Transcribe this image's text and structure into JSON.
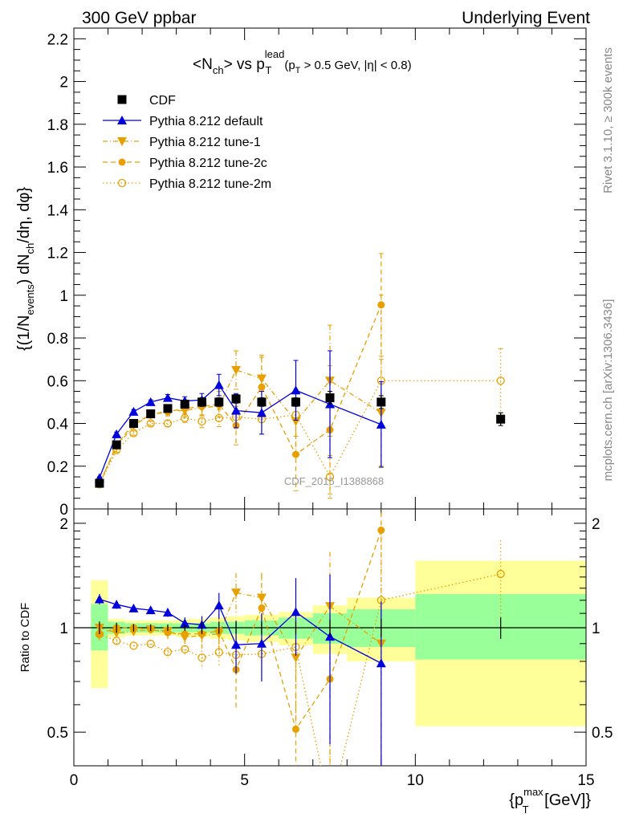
{
  "header": {
    "left_title": "300 GeV ppbar",
    "right_title": "Underlying Event"
  },
  "side_labels": {
    "rivet": "Rivet 3.1.10, ≥ 300k events",
    "mcplots": "mcplots.cern.ch [arXiv:1306.3436]"
  },
  "watermark": "CDF_2015_I1388868",
  "chart_data": {
    "type": "scatter",
    "title": "<N_ch> vs p_T^lead (p_T > 0.5 GeV, |η| < 0.8)",
    "title_parts": {
      "main": "<N",
      "main_sub": "ch",
      "mid": "> vs p",
      "mid_sup": "lead",
      "mid_sub": "T",
      "cut": "(p",
      "cut_sub": "T",
      "cut_rest": " > 0.5 GeV, |η| < 0.8)"
    },
    "ylabel": "{(1/N_events) dN_ch/dη, dφ}",
    "ylabel_parts": {
      "a": "{(1/N",
      "a_sub": "events",
      "b": ") dN",
      "b_sub": "ch",
      "c": "/dη, dφ}"
    },
    "xlabel": "{p_T^max [GeV]}",
    "xlabel_parts": {
      "a": "{p",
      "a_sub": "T",
      "a_sup": "max",
      "b": " [GeV]}"
    },
    "ratio_ylabel": "Ratio to CDF",
    "xlim": [
      0,
      15
    ],
    "ylim": [
      0,
      2.25
    ],
    "ratio_ylim": [
      0.4,
      2.2
    ],
    "x_ticks": [
      0,
      5,
      10,
      15
    ],
    "y_ticks": [
      0,
      0.2,
      0.4,
      0.6,
      0.8,
      1,
      1.2,
      1.4,
      1.6,
      1.8,
      2,
      2.2
    ],
    "y_tick_labels": [
      "0",
      "0.2",
      "0.4",
      "0.6",
      "0.8",
      "1",
      "1.2",
      "1.4",
      "1.6",
      "1.8",
      "2",
      "2.2"
    ],
    "ratio_ticks": [
      0.5,
      1,
      2
    ],
    "ratio_tick_labels": [
      "0.5",
      "1",
      "2"
    ],
    "x_tick_labels": [
      "0",
      "5",
      "10",
      "15"
    ],
    "series": [
      {
        "name": "CDF",
        "color": "#000000",
        "marker": "square",
        "line": "none",
        "x": [
          0.75,
          1.25,
          1.75,
          2.25,
          2.75,
          3.25,
          3.75,
          4.25,
          4.75,
          5.5,
          6.5,
          7.5,
          9.0,
          12.5
        ],
        "y": [
          0.12,
          0.3,
          0.4,
          0.445,
          0.47,
          0.49,
          0.5,
          0.5,
          0.515,
          0.5,
          0.5,
          0.52,
          0.5,
          0.42
        ],
        "err": [
          0.005,
          0.01,
          0.01,
          0.01,
          0.01,
          0.01,
          0.02,
          0.02,
          0.02,
          0.02,
          0.02,
          0.03,
          0.03,
          0.03
        ]
      },
      {
        "name": "Pythia 8.212 default",
        "color": "#0000dd",
        "marker": "triangle-up",
        "line": "solid",
        "x": [
          0.75,
          1.25,
          1.75,
          2.25,
          2.75,
          3.25,
          3.75,
          4.25,
          4.75,
          5.5,
          6.5,
          7.5,
          9.0
        ],
        "y": [
          0.145,
          0.35,
          0.455,
          0.5,
          0.52,
          0.505,
          0.51,
          0.58,
          0.46,
          0.45,
          0.555,
          0.49,
          0.395
        ],
        "err": [
          0.005,
          0.01,
          0.01,
          0.01,
          0.015,
          0.02,
          0.03,
          0.05,
          0.08,
          0.1,
          0.14,
          0.25,
          0.2
        ]
      },
      {
        "name": "Pythia 8.212 tune-1",
        "color": "#e8a000",
        "marker": "triangle-down",
        "line": "dashdot",
        "x": [
          0.75,
          1.25,
          1.75,
          2.25,
          2.75,
          3.25,
          3.75,
          4.25,
          4.75,
          5.5,
          6.5,
          7.5,
          9.0
        ],
        "y": [
          0.12,
          0.29,
          0.39,
          0.44,
          0.46,
          0.46,
          0.475,
          0.48,
          0.65,
          0.61,
          0.41,
          0.6,
          0.45
        ],
        "err": [
          0.005,
          0.01,
          0.01,
          0.01,
          0.02,
          0.03,
          0.04,
          0.05,
          0.09,
          0.11,
          0.15,
          0.26,
          0.25
        ]
      },
      {
        "name": "Pythia 8.212 tune-2c",
        "color": "#e8a000",
        "marker": "circle",
        "line": "dashed",
        "x": [
          0.75,
          1.25,
          1.75,
          2.25,
          2.75,
          3.25,
          3.75,
          4.25,
          4.75,
          5.5,
          6.5,
          7.5,
          9.0
        ],
        "y": [
          0.115,
          0.3,
          0.4,
          0.44,
          0.455,
          0.47,
          0.48,
          0.49,
          0.39,
          0.57,
          0.255,
          0.37,
          0.955
        ],
        "err": [
          0.005,
          0.01,
          0.01,
          0.01,
          0.02,
          0.03,
          0.04,
          0.06,
          0.09,
          0.14,
          0.17,
          0.3,
          0.24
        ]
      },
      {
        "name": "Pythia 8.212 tune-2m",
        "color": "#e8a000",
        "marker": "circle-open",
        "line": "dotted",
        "x": [
          0.75,
          1.25,
          1.75,
          2.25,
          2.75,
          3.25,
          3.75,
          4.25,
          4.75,
          5.5,
          6.5,
          7.5,
          9.0,
          12.5
        ],
        "y": [
          0.115,
          0.275,
          0.355,
          0.4,
          0.4,
          0.425,
          0.41,
          0.425,
          0.43,
          0.42,
          0.44,
          0.15,
          0.6,
          0.6
        ],
        "err": [
          0.005,
          0.01,
          0.01,
          0.01,
          0.015,
          0.02,
          0.03,
          0.04,
          0.05,
          0.07,
          0.1,
          0.1,
          0.4,
          0.15
        ]
      }
    ],
    "ratio_bands": [
      {
        "x0": 0.5,
        "x1": 1.0,
        "stat_lo": 0.86,
        "stat_hi": 1.17,
        "tot_lo": 0.67,
        "tot_hi": 1.37
      },
      {
        "x0": 1.0,
        "x1": 1.5,
        "stat_lo": 0.96,
        "stat_hi": 1.04,
        "tot_lo": 0.94,
        "tot_hi": 1.06
      },
      {
        "x0": 1.5,
        "x1": 2.0,
        "stat_lo": 0.97,
        "stat_hi": 1.03,
        "tot_lo": 0.95,
        "tot_hi": 1.05
      },
      {
        "x0": 2.0,
        "x1": 2.5,
        "stat_lo": 0.97,
        "stat_hi": 1.03,
        "tot_lo": 0.95,
        "tot_hi": 1.05
      },
      {
        "x0": 2.5,
        "x1": 3.0,
        "stat_lo": 0.97,
        "stat_hi": 1.03,
        "tot_lo": 0.95,
        "tot_hi": 1.05
      },
      {
        "x0": 3.0,
        "x1": 3.5,
        "stat_lo": 0.97,
        "stat_hi": 1.03,
        "tot_lo": 0.94,
        "tot_hi": 1.06
      },
      {
        "x0": 3.5,
        "x1": 4.0,
        "stat_lo": 0.97,
        "stat_hi": 1.03,
        "tot_lo": 0.94,
        "tot_hi": 1.06
      },
      {
        "x0": 4.0,
        "x1": 4.5,
        "stat_lo": 0.96,
        "stat_hi": 1.04,
        "tot_lo": 0.93,
        "tot_hi": 1.07
      },
      {
        "x0": 4.5,
        "x1": 5.0,
        "stat_lo": 0.96,
        "stat_hi": 1.04,
        "tot_lo": 0.92,
        "tot_hi": 1.08
      },
      {
        "x0": 5.0,
        "x1": 6.0,
        "stat_lo": 0.95,
        "stat_hi": 1.05,
        "tot_lo": 0.91,
        "tot_hi": 1.09
      },
      {
        "x0": 6.0,
        "x1": 7.0,
        "stat_lo": 0.93,
        "stat_hi": 1.07,
        "tot_lo": 0.89,
        "tot_hi": 1.11
      },
      {
        "x0": 7.0,
        "x1": 8.0,
        "stat_lo": 0.9,
        "stat_hi": 1.1,
        "tot_lo": 0.84,
        "tot_hi": 1.16
      },
      {
        "x0": 8.0,
        "x1": 10.0,
        "stat_lo": 0.88,
        "stat_hi": 1.13,
        "tot_lo": 0.8,
        "tot_hi": 1.22
      },
      {
        "x0": 10.0,
        "x1": 15.0,
        "stat_lo": 0.81,
        "stat_hi": 1.25,
        "tot_lo": 0.52,
        "tot_hi": 1.56
      }
    ]
  }
}
